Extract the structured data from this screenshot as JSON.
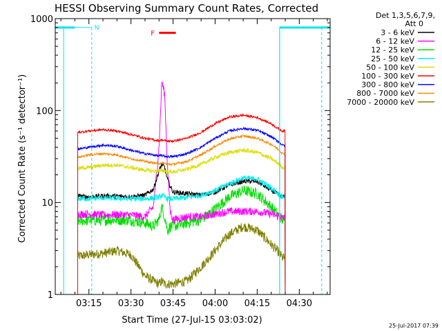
{
  "chart_data": {
    "type": "line",
    "title": "HESSI Observing Summary Count Rates, Corrected",
    "xlabel": "Start Time (27-Jul-15 03:03:02)",
    "ylabel": "Corrected Count Rate (s⁻¹ detector⁻¹)",
    "y_scale": "log",
    "ylim": [
      1,
      1000
    ],
    "xlim": [
      "03:03",
      "04:41"
    ],
    "y_ticks": [
      {
        "value": 1,
        "label": "1"
      },
      {
        "value": 10,
        "label": "10"
      },
      {
        "value": 100,
        "label": "100"
      },
      {
        "value": 1000,
        "label": "1000"
      }
    ],
    "x_ticks": [
      {
        "value": "03:15",
        "label": "03:15"
      },
      {
        "value": "03:30",
        "label": "03:30"
      },
      {
        "value": "03:45",
        "label": "03:45"
      },
      {
        "value": "04:00",
        "label": "04:00"
      },
      {
        "value": "04:15",
        "label": "04:15"
      },
      {
        "value": "04:30",
        "label": "04:30"
      }
    ],
    "legend_header": [
      "Det 1,3,5,6,7,9,",
      "Att 0"
    ],
    "legend_position": "right",
    "timestamp": "25-Jul-2017 07:39",
    "annotations": [
      {
        "label": "N",
        "color": "#00e5ee"
      },
      {
        "label": "F",
        "color": "#ff0000"
      }
    ],
    "observing_periods": {
      "night": [
        [
          "03:03",
          "03:10"
        ],
        [
          "04:23",
          "04:41"
        ]
      ],
      "flare": [
        "03:40",
        "03:46"
      ],
      "data_start": "03:11",
      "data_end": "04:25",
      "saa_dashed": [
        "03:16",
        "04:38"
      ]
    },
    "x_points": [
      "03:11",
      "03:15",
      "03:20",
      "03:25",
      "03:30",
      "03:35",
      "03:38",
      "03:40",
      "03:41",
      "03:42",
      "03:43",
      "03:44",
      "03:45",
      "03:50",
      "03:55",
      "04:00",
      "04:05",
      "04:10",
      "04:15",
      "04:20",
      "04:23",
      "04:24"
    ],
    "series": [
      {
        "name": "3 - 6 keV",
        "color": "#000000",
        "values": [
          11.8,
          11.5,
          11.8,
          11.7,
          11.6,
          12.0,
          14.0,
          22.0,
          26.0,
          24.0,
          18.0,
          15.0,
          13.0,
          12.5,
          12.0,
          13.0,
          15.5,
          17.0,
          17.0,
          13.5,
          12.0,
          11.5
        ]
      },
      {
        "name": "6 - 12 keV",
        "color": "#ff00ff",
        "values": [
          7.5,
          7.5,
          7.3,
          7.4,
          7.3,
          7.0,
          9.0,
          40.0,
          210.0,
          150.0,
          25.0,
          8.0,
          6.5,
          7.0,
          7.0,
          7.5,
          8.0,
          8.0,
          8.0,
          7.5,
          7.0,
          6.8
        ]
      },
      {
        "name": "12 - 25 keV",
        "color": "#00dd00",
        "values": [
          6.3,
          6.4,
          6.4,
          6.5,
          6.4,
          6.0,
          5.5,
          6.5,
          9.0,
          7.0,
          5.0,
          5.5,
          5.5,
          6.0,
          6.5,
          8.5,
          11.5,
          13.5,
          12.5,
          9.0,
          7.0,
          6.5
        ]
      },
      {
        "name": "25 - 50 keV",
        "color": "#00eeee",
        "values": [
          11.0,
          11.0,
          11.2,
          11.1,
          11.0,
          11.0,
          11.2,
          11.4,
          12.0,
          11.5,
          11.0,
          11.0,
          11.0,
          11.3,
          12.0,
          13.5,
          16.0,
          18.5,
          18.0,
          14.5,
          12.0,
          11.5
        ]
      },
      {
        "name": "50 - 100 keV",
        "color": "#dddd00",
        "values": [
          23.5,
          24.0,
          25.5,
          25.5,
          24.0,
          22.5,
          22.0,
          22.0,
          22.5,
          22.0,
          21.5,
          21.5,
          21.5,
          23.0,
          26.0,
          31.0,
          35.0,
          37.0,
          35.0,
          30.0,
          26.0,
          24.0
        ]
      },
      {
        "name": "100 - 300 keV",
        "color": "#ff0000",
        "values": [
          58.0,
          60.0,
          62.0,
          60.0,
          55.0,
          50.0,
          48.0,
          47.0,
          48.0,
          47.0,
          46.5,
          46.5,
          46.5,
          50.0,
          58.0,
          72.0,
          85.0,
          89.0,
          84.0,
          72.0,
          62.0,
          60.0
        ]
      },
      {
        "name": "300 - 800 keV",
        "color": "#0000ff",
        "values": [
          38.0,
          40.0,
          42.0,
          41.0,
          37.0,
          34.0,
          33.0,
          32.0,
          32.5,
          32.0,
          31.5,
          31.5,
          31.5,
          34.0,
          40.0,
          50.0,
          60.0,
          64.0,
          61.0,
          52.0,
          45.0,
          42.0
        ]
      },
      {
        "name": "800 - 7000 keV",
        "color": "#ff8800",
        "values": [
          31.0,
          33.0,
          34.0,
          33.0,
          30.0,
          28.0,
          27.0,
          26.5,
          27.0,
          26.5,
          26.0,
          26.0,
          26.0,
          28.0,
          33.0,
          41.0,
          49.0,
          53.0,
          50.0,
          43.0,
          37.0,
          34.0
        ]
      },
      {
        "name": "7000 - 20000 keV",
        "color": "#808000",
        "values": [
          2.6,
          2.7,
          2.8,
          3.0,
          2.7,
          1.6,
          1.4,
          1.3,
          1.4,
          1.3,
          1.3,
          1.3,
          1.3,
          1.4,
          2.0,
          3.0,
          4.5,
          5.5,
          5.0,
          3.5,
          2.8,
          2.5
        ]
      }
    ]
  }
}
